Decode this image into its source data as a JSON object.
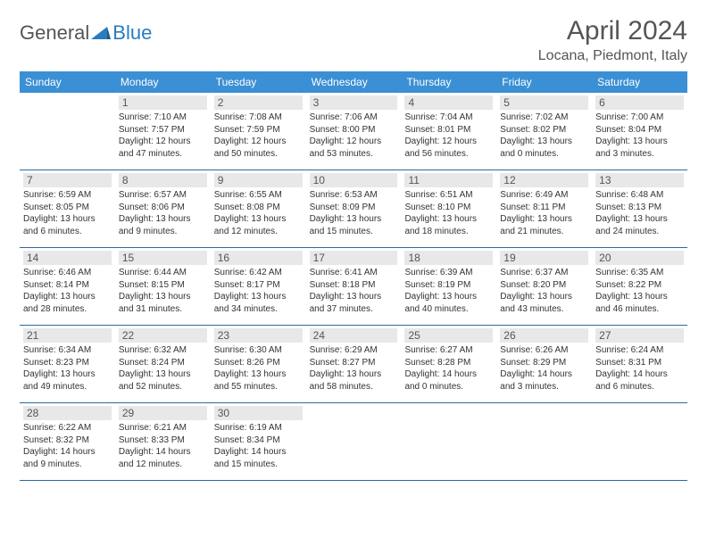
{
  "logo": {
    "general": "General",
    "blue": "Blue"
  },
  "title": "April 2024",
  "location": "Locana, Piedmont, Italy",
  "colors": {
    "headerBg": "#3b8fd4",
    "headerText": "#ffffff",
    "dayNumBg": "#e8e8e8",
    "borderColor": "#2b6aa3",
    "textColor": "#333333"
  },
  "dayNames": [
    "Sunday",
    "Monday",
    "Tuesday",
    "Wednesday",
    "Thursday",
    "Friday",
    "Saturday"
  ],
  "weeks": [
    [
      null,
      {
        "n": "1",
        "sr": "Sunrise: 7:10 AM",
        "ss": "Sunset: 7:57 PM",
        "d1": "Daylight: 12 hours",
        "d2": "and 47 minutes."
      },
      {
        "n": "2",
        "sr": "Sunrise: 7:08 AM",
        "ss": "Sunset: 7:59 PM",
        "d1": "Daylight: 12 hours",
        "d2": "and 50 minutes."
      },
      {
        "n": "3",
        "sr": "Sunrise: 7:06 AM",
        "ss": "Sunset: 8:00 PM",
        "d1": "Daylight: 12 hours",
        "d2": "and 53 minutes."
      },
      {
        "n": "4",
        "sr": "Sunrise: 7:04 AM",
        "ss": "Sunset: 8:01 PM",
        "d1": "Daylight: 12 hours",
        "d2": "and 56 minutes."
      },
      {
        "n": "5",
        "sr": "Sunrise: 7:02 AM",
        "ss": "Sunset: 8:02 PM",
        "d1": "Daylight: 13 hours",
        "d2": "and 0 minutes."
      },
      {
        "n": "6",
        "sr": "Sunrise: 7:00 AM",
        "ss": "Sunset: 8:04 PM",
        "d1": "Daylight: 13 hours",
        "d2": "and 3 minutes."
      }
    ],
    [
      {
        "n": "7",
        "sr": "Sunrise: 6:59 AM",
        "ss": "Sunset: 8:05 PM",
        "d1": "Daylight: 13 hours",
        "d2": "and 6 minutes."
      },
      {
        "n": "8",
        "sr": "Sunrise: 6:57 AM",
        "ss": "Sunset: 8:06 PM",
        "d1": "Daylight: 13 hours",
        "d2": "and 9 minutes."
      },
      {
        "n": "9",
        "sr": "Sunrise: 6:55 AM",
        "ss": "Sunset: 8:08 PM",
        "d1": "Daylight: 13 hours",
        "d2": "and 12 minutes."
      },
      {
        "n": "10",
        "sr": "Sunrise: 6:53 AM",
        "ss": "Sunset: 8:09 PM",
        "d1": "Daylight: 13 hours",
        "d2": "and 15 minutes."
      },
      {
        "n": "11",
        "sr": "Sunrise: 6:51 AM",
        "ss": "Sunset: 8:10 PM",
        "d1": "Daylight: 13 hours",
        "d2": "and 18 minutes."
      },
      {
        "n": "12",
        "sr": "Sunrise: 6:49 AM",
        "ss": "Sunset: 8:11 PM",
        "d1": "Daylight: 13 hours",
        "d2": "and 21 minutes."
      },
      {
        "n": "13",
        "sr": "Sunrise: 6:48 AM",
        "ss": "Sunset: 8:13 PM",
        "d1": "Daylight: 13 hours",
        "d2": "and 24 minutes."
      }
    ],
    [
      {
        "n": "14",
        "sr": "Sunrise: 6:46 AM",
        "ss": "Sunset: 8:14 PM",
        "d1": "Daylight: 13 hours",
        "d2": "and 28 minutes."
      },
      {
        "n": "15",
        "sr": "Sunrise: 6:44 AM",
        "ss": "Sunset: 8:15 PM",
        "d1": "Daylight: 13 hours",
        "d2": "and 31 minutes."
      },
      {
        "n": "16",
        "sr": "Sunrise: 6:42 AM",
        "ss": "Sunset: 8:17 PM",
        "d1": "Daylight: 13 hours",
        "d2": "and 34 minutes."
      },
      {
        "n": "17",
        "sr": "Sunrise: 6:41 AM",
        "ss": "Sunset: 8:18 PM",
        "d1": "Daylight: 13 hours",
        "d2": "and 37 minutes."
      },
      {
        "n": "18",
        "sr": "Sunrise: 6:39 AM",
        "ss": "Sunset: 8:19 PM",
        "d1": "Daylight: 13 hours",
        "d2": "and 40 minutes."
      },
      {
        "n": "19",
        "sr": "Sunrise: 6:37 AM",
        "ss": "Sunset: 8:20 PM",
        "d1": "Daylight: 13 hours",
        "d2": "and 43 minutes."
      },
      {
        "n": "20",
        "sr": "Sunrise: 6:35 AM",
        "ss": "Sunset: 8:22 PM",
        "d1": "Daylight: 13 hours",
        "d2": "and 46 minutes."
      }
    ],
    [
      {
        "n": "21",
        "sr": "Sunrise: 6:34 AM",
        "ss": "Sunset: 8:23 PM",
        "d1": "Daylight: 13 hours",
        "d2": "and 49 minutes."
      },
      {
        "n": "22",
        "sr": "Sunrise: 6:32 AM",
        "ss": "Sunset: 8:24 PM",
        "d1": "Daylight: 13 hours",
        "d2": "and 52 minutes."
      },
      {
        "n": "23",
        "sr": "Sunrise: 6:30 AM",
        "ss": "Sunset: 8:26 PM",
        "d1": "Daylight: 13 hours",
        "d2": "and 55 minutes."
      },
      {
        "n": "24",
        "sr": "Sunrise: 6:29 AM",
        "ss": "Sunset: 8:27 PM",
        "d1": "Daylight: 13 hours",
        "d2": "and 58 minutes."
      },
      {
        "n": "25",
        "sr": "Sunrise: 6:27 AM",
        "ss": "Sunset: 8:28 PM",
        "d1": "Daylight: 14 hours",
        "d2": "and 0 minutes."
      },
      {
        "n": "26",
        "sr": "Sunrise: 6:26 AM",
        "ss": "Sunset: 8:29 PM",
        "d1": "Daylight: 14 hours",
        "d2": "and 3 minutes."
      },
      {
        "n": "27",
        "sr": "Sunrise: 6:24 AM",
        "ss": "Sunset: 8:31 PM",
        "d1": "Daylight: 14 hours",
        "d2": "and 6 minutes."
      }
    ],
    [
      {
        "n": "28",
        "sr": "Sunrise: 6:22 AM",
        "ss": "Sunset: 8:32 PM",
        "d1": "Daylight: 14 hours",
        "d2": "and 9 minutes."
      },
      {
        "n": "29",
        "sr": "Sunrise: 6:21 AM",
        "ss": "Sunset: 8:33 PM",
        "d1": "Daylight: 14 hours",
        "d2": "and 12 minutes."
      },
      {
        "n": "30",
        "sr": "Sunrise: 6:19 AM",
        "ss": "Sunset: 8:34 PM",
        "d1": "Daylight: 14 hours",
        "d2": "and 15 minutes."
      },
      null,
      null,
      null,
      null
    ]
  ]
}
